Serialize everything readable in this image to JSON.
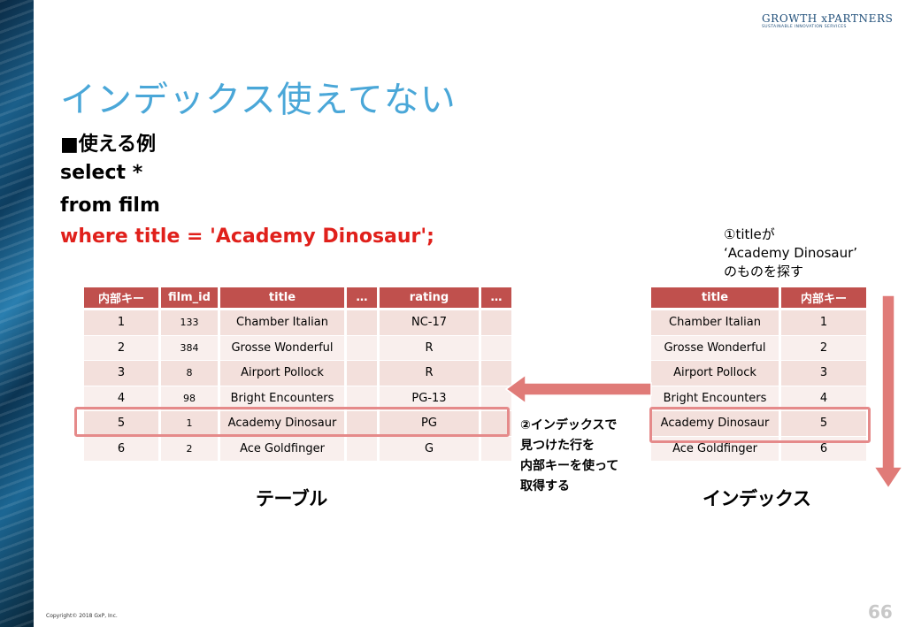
{
  "logo": {
    "name": "GROWTH xPARTNERS",
    "tagline": "SUSTAINABLE INNOVATION SERVICES"
  },
  "slide": {
    "title": "インデックス使えてない",
    "body": {
      "heading": "■使える例",
      "sql_line1": "select *",
      "sql_line2": "from film",
      "sql_line3": "where title = 'Academy Dinosaur';"
    },
    "note_search": {
      "line1": "①titleが",
      "line2": "‘Academy Dinosaur’",
      "line3": "のものを探す"
    },
    "note_fetch": {
      "line1": "②インデックスで",
      "line2": "見つけた行を",
      "line3": "内部キーを使って",
      "line4": "取得する"
    },
    "table_label": "テーブル",
    "index_label": "インデックス",
    "copyright": "Copyright© 2018 GxP, Inc.",
    "page_number": "66"
  },
  "film_table": {
    "headers": [
      "内部キー",
      "film_id",
      "title",
      "…",
      "rating",
      "…"
    ],
    "rows": [
      [
        "1",
        "133",
        "Chamber Italian",
        "",
        "NC-17",
        ""
      ],
      [
        "2",
        "384",
        "Grosse Wonderful",
        "",
        "R",
        ""
      ],
      [
        "3",
        "8",
        "Airport Pollock",
        "",
        "R",
        ""
      ],
      [
        "4",
        "98",
        "Bright Encounters",
        "",
        "PG-13",
        ""
      ],
      [
        "5",
        "1",
        "Academy Dinosaur",
        "",
        "PG",
        ""
      ],
      [
        "6",
        "2",
        "Ace Goldfinger",
        "",
        "G",
        ""
      ]
    ]
  },
  "index_table": {
    "headers": [
      "title",
      "内部キー"
    ],
    "rows": [
      [
        "Chamber Italian",
        "1"
      ],
      [
        "Grosse Wonderful",
        "2"
      ],
      [
        "Airport Pollock",
        "3"
      ],
      [
        "Bright Encounters",
        "4"
      ],
      [
        "Academy Dinosaur",
        "5"
      ],
      [
        "Ace Goldfinger",
        "6"
      ]
    ]
  },
  "colors": {
    "title": "#4aa7d8",
    "header_bg": "#c0504d",
    "highlight": "#e58a8a",
    "sql_highlight": "#e0201b",
    "arrow": "#e07b78"
  }
}
